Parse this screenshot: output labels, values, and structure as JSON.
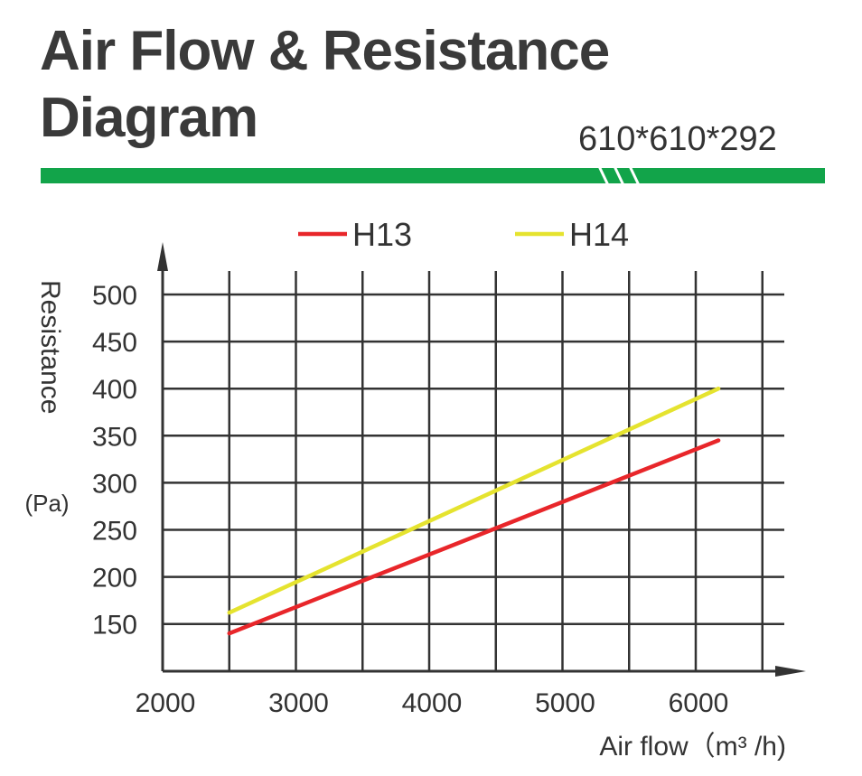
{
  "header": {
    "title": "Air Flow & Resistance Diagram",
    "spec": "610*610*292",
    "bar_color": "#12a44a"
  },
  "chart_data": {
    "type": "line",
    "xlabel": "Air flow（m³ /h)",
    "ylabel": "Resistance",
    "ylabel_unit": "(Pa)",
    "xlim": [
      2000,
      6700
    ],
    "ylim": [
      100,
      500
    ],
    "x_ticks": [
      2000,
      3000,
      4000,
      5000,
      6000
    ],
    "y_ticks": [
      150,
      200,
      250,
      300,
      350,
      400,
      450,
      500
    ],
    "grid": true,
    "legend_position": "top",
    "series": [
      {
        "name": "H13",
        "color": "#e8262a",
        "x": [
          2500,
          6170
        ],
        "y": [
          140,
          345
        ]
      },
      {
        "name": "H14",
        "color": "#e5e32f",
        "x": [
          2500,
          6170
        ],
        "y": [
          162,
          400
        ]
      }
    ]
  }
}
